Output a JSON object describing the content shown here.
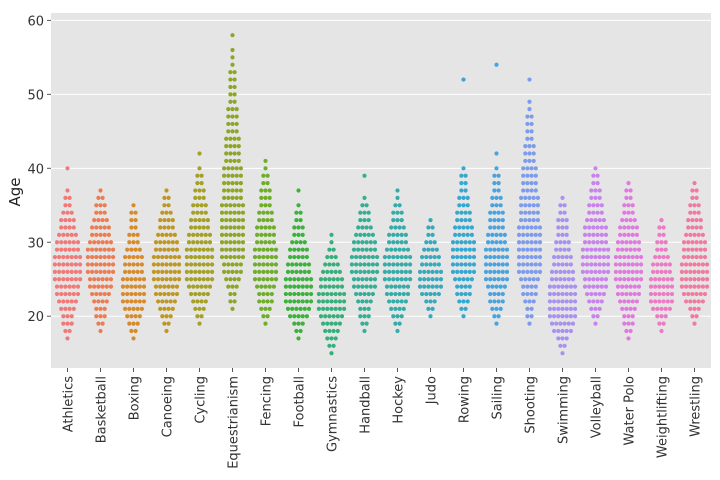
{
  "chart_data": {
    "type": "swarm",
    "title": "",
    "xlabel": "",
    "ylabel": "Age",
    "ylim": [
      13,
      61
    ],
    "yticks": [
      20,
      30,
      40,
      50,
      60
    ],
    "grid": true,
    "categories": [
      "Athletics",
      "Basketball",
      "Boxing",
      "Canoeing",
      "Cycling",
      "Equestrianism",
      "Fencing",
      "Football",
      "Gymnastics",
      "Handball",
      "Hockey",
      "Judo",
      "Rowing",
      "Sailing",
      "Shooting",
      "Swimming",
      "Volleyball",
      "Water Polo",
      "Weightlifting",
      "Wrestling"
    ],
    "colors": [
      "#f07a7a",
      "#ec7d52",
      "#d88b2c",
      "#bf9723",
      "#a5a127",
      "#8ea627",
      "#6eae2a",
      "#3bb23c",
      "#36b07a",
      "#34ae95",
      "#35aca8",
      "#36aabb",
      "#36a8cf",
      "#49a3df",
      "#7e9ceb",
      "#a891ef",
      "#c883ec",
      "#e17adf",
      "#ec7ac5",
      "#f07aa0"
    ],
    "series": [
      {
        "name": "Athletics",
        "min": 17,
        "max": 37,
        "mode": 26,
        "outliers": [
          40
        ],
        "width": 1.0
      },
      {
        "name": "Basketball",
        "min": 18,
        "max": 37,
        "mode": 27,
        "outliers": [],
        "width": 1.0
      },
      {
        "name": "Boxing",
        "min": 17,
        "max": 35,
        "mode": 23,
        "outliers": [],
        "width": 0.9
      },
      {
        "name": "Canoeing",
        "min": 18,
        "max": 37,
        "mode": 26,
        "outliers": [],
        "width": 1.0
      },
      {
        "name": "Cycling",
        "min": 19,
        "max": 40,
        "mode": 26,
        "outliers": [
          42
        ],
        "width": 0.95
      },
      {
        "name": "Equestrianism",
        "min": 21,
        "max": 55,
        "mode": 29,
        "outliers": [
          56,
          58
        ],
        "width": 0.9
      },
      {
        "name": "Fencing",
        "min": 19,
        "max": 41,
        "mode": 26,
        "outliers": [],
        "width": 0.9
      },
      {
        "name": "Football",
        "min": 17,
        "max": 35,
        "mode": 23,
        "outliers": [
          37
        ],
        "width": 1.0
      },
      {
        "name": "Gymnastics",
        "min": 15,
        "max": 30,
        "mode": 22,
        "outliers": [
          31
        ],
        "width": 1.0
      },
      {
        "name": "Handball",
        "min": 18,
        "max": 36,
        "mode": 27,
        "outliers": [
          39
        ],
        "width": 1.0
      },
      {
        "name": "Hockey",
        "min": 18,
        "max": 36,
        "mode": 26,
        "outliers": [
          37
        ],
        "width": 0.95
      },
      {
        "name": "Judo",
        "min": 20,
        "max": 33,
        "mode": 25,
        "outliers": [],
        "width": 0.85
      },
      {
        "name": "Rowing",
        "min": 20,
        "max": 40,
        "mode": 27,
        "outliers": [
          52
        ],
        "width": 0.9
      },
      {
        "name": "Sailing",
        "min": 19,
        "max": 40,
        "mode": 26,
        "outliers": [
          42,
          54
        ],
        "width": 0.85
      },
      {
        "name": "Shooting",
        "min": 19,
        "max": 49,
        "mode": 28,
        "outliers": [
          52
        ],
        "width": 0.85
      },
      {
        "name": "Swimming",
        "min": 15,
        "max": 36,
        "mode": 21,
        "outliers": [],
        "width": 1.0
      },
      {
        "name": "Volleyball",
        "min": 19,
        "max": 40,
        "mode": 27,
        "outliers": [],
        "width": 0.95
      },
      {
        "name": "Water Polo",
        "min": 17,
        "max": 38,
        "mode": 26,
        "outliers": [],
        "width": 1.0
      },
      {
        "name": "Weightlifting",
        "min": 18,
        "max": 33,
        "mode": 23,
        "outliers": [],
        "width": 0.9
      },
      {
        "name": "Wrestling",
        "min": 19,
        "max": 38,
        "mode": 25,
        "outliers": [],
        "width": 1.0
      }
    ]
  }
}
